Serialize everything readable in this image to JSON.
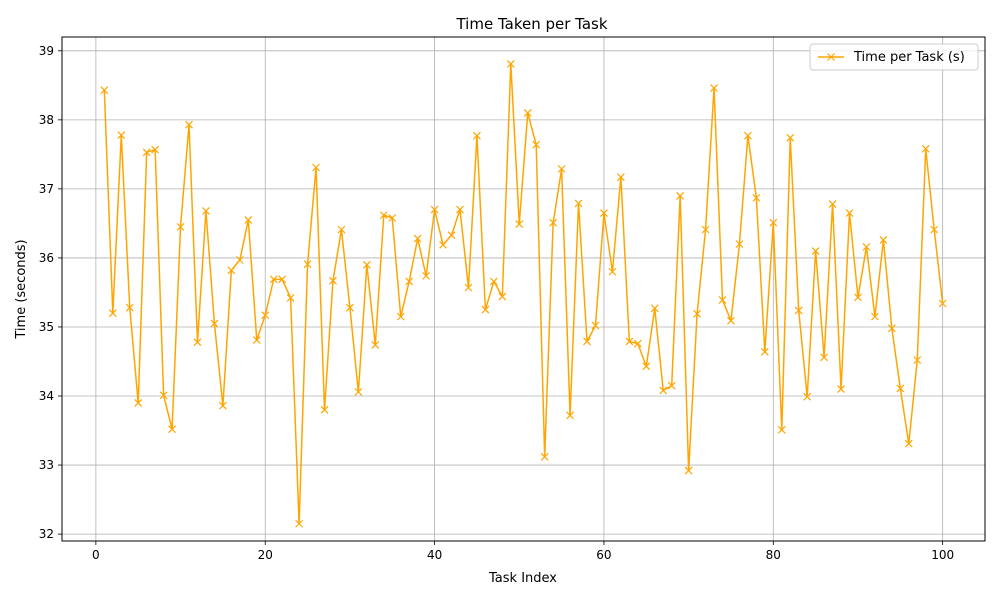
{
  "chart_data": {
    "type": "line",
    "title": "Time Taken per Task",
    "xlabel": "Task Index",
    "ylabel": "Time (seconds)",
    "xlim": [
      -4,
      105
    ],
    "ylim": [
      31.9,
      39.2
    ],
    "xticks": [
      0,
      20,
      40,
      60,
      80,
      100
    ],
    "yticks": [
      32,
      33,
      34,
      35,
      36,
      37,
      38,
      39
    ],
    "grid": true,
    "legend_position": "top-right",
    "marker": "x",
    "series": [
      {
        "name": "Time per Task (s)",
        "color": "#FFA500",
        "x": [
          1,
          2,
          3,
          4,
          5,
          6,
          7,
          8,
          9,
          10,
          11,
          12,
          13,
          14,
          15,
          16,
          17,
          18,
          19,
          20,
          21,
          22,
          23,
          24,
          25,
          26,
          27,
          28,
          29,
          30,
          31,
          32,
          33,
          34,
          35,
          36,
          37,
          38,
          39,
          40,
          41,
          42,
          43,
          44,
          45,
          46,
          47,
          48,
          49,
          50,
          51,
          52,
          53,
          54,
          55,
          56,
          57,
          58,
          59,
          60,
          61,
          62,
          63,
          64,
          65,
          66,
          67,
          68,
          69,
          70,
          71,
          72,
          73,
          74,
          75,
          76,
          77,
          78,
          79,
          80,
          81,
          82,
          83,
          84,
          85,
          86,
          87,
          88,
          89,
          90,
          91,
          92,
          93,
          94,
          95,
          96,
          97,
          98,
          99,
          100
        ],
        "values": [
          38.43,
          35.2,
          37.78,
          35.28,
          33.9,
          37.53,
          37.57,
          34.01,
          33.52,
          36.45,
          37.93,
          34.78,
          36.68,
          35.05,
          33.86,
          35.82,
          35.97,
          36.55,
          34.81,
          35.17,
          35.69,
          35.69,
          35.42,
          32.15,
          35.91,
          37.31,
          33.8,
          35.67,
          36.41,
          35.28,
          34.06,
          35.9,
          34.74,
          36.62,
          36.58,
          35.15,
          35.66,
          36.28,
          35.74,
          36.7,
          36.19,
          36.33,
          36.7,
          35.57,
          37.77,
          35.25,
          35.66,
          35.44,
          38.81,
          36.49,
          38.1,
          37.64,
          33.12,
          36.51,
          37.29,
          33.72,
          36.79,
          34.79,
          35.02,
          36.65,
          35.8,
          37.17,
          34.79,
          34.76,
          34.43,
          35.27,
          34.08,
          34.15,
          36.9,
          32.92,
          35.19,
          36.41,
          38.46,
          35.39,
          35.09,
          36.2,
          37.77,
          36.87,
          34.64,
          36.51,
          33.51,
          37.74,
          35.24,
          33.99,
          36.1,
          34.56,
          36.78,
          34.1,
          36.65,
          35.43,
          36.16,
          35.15,
          36.26,
          34.98,
          34.11,
          33.31,
          34.52,
          37.58,
          36.41,
          35.34
        ]
      }
    ]
  }
}
